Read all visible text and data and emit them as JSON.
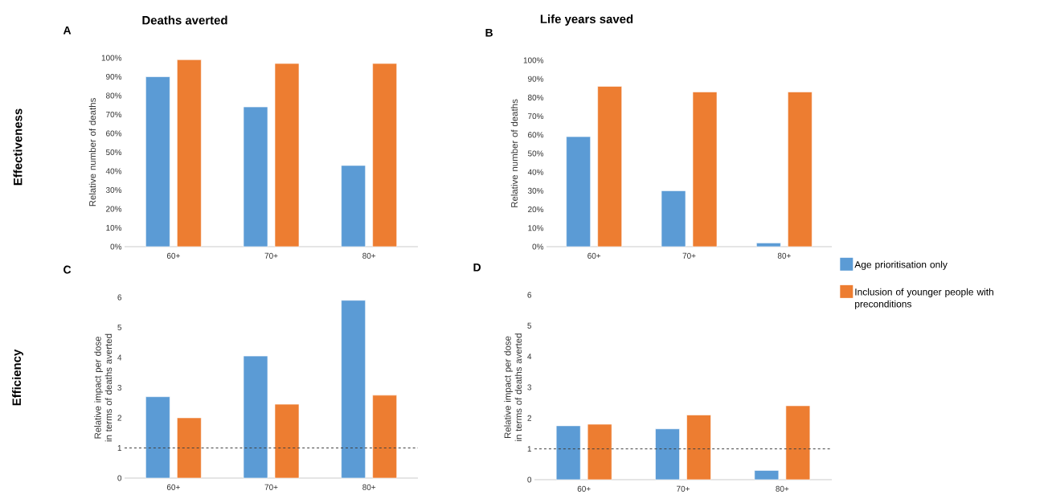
{
  "chart_data": [
    {
      "type": "bar",
      "title": "A",
      "annotations": [
        "Deaths averted",
        "Effectiveness"
      ],
      "ylabel": "Relative number of deaths",
      "categories": [
        "60+",
        "70+",
        "80+"
      ],
      "series": [
        {
          "color": "#5b9bd5",
          "values": [
            90,
            74,
            43
          ]
        },
        {
          "color": "#ed7d31",
          "values": [
            99,
            97,
            97
          ]
        }
      ],
      "ylim": [
        0,
        100
      ],
      "yticks": [
        {
          "value": 0,
          "label": "0%"
        },
        {
          "value": 10,
          "label": "10%"
        },
        {
          "value": 20,
          "label": "20%"
        },
        {
          "value": 30,
          "label": "30%"
        },
        {
          "value": 40,
          "label": "40%"
        },
        {
          "value": 50,
          "label": "50%"
        },
        {
          "value": 60,
          "label": "60%"
        },
        {
          "value": 70,
          "label": "70%"
        },
        {
          "value": 80,
          "label": "80%"
        },
        {
          "value": 90,
          "label": "90%"
        },
        {
          "value": 100,
          "label": "100%"
        }
      ]
    },
    {
      "type": "bar",
      "title": "B",
      "annotations": [
        "Life years saved"
      ],
      "ylabel": "Relative number of deaths",
      "categories": [
        "60+",
        "70+",
        "80+"
      ],
      "series": [
        {
          "name": "Age prioritisation only",
          "color": "#5b9bd5",
          "values": [
            59,
            30,
            2
          ]
        },
        {
          "name": "Inclusion of younger people with preconditions",
          "color": "#ed7d31",
          "values": [
            86,
            83,
            83
          ]
        }
      ],
      "legend": "right",
      "ylim": [
        0,
        100
      ],
      "yticks": [
        {
          "value": 0,
          "label": "0%"
        },
        {
          "value": 10,
          "label": "10%"
        },
        {
          "value": 20,
          "label": "20%"
        },
        {
          "value": 30,
          "label": "30%"
        },
        {
          "value": 40,
          "label": "40%"
        },
        {
          "value": 50,
          "label": "50%"
        },
        {
          "value": 60,
          "label": "60%"
        },
        {
          "value": 70,
          "label": "70%"
        },
        {
          "value": 80,
          "label": "80%"
        },
        {
          "value": 90,
          "label": "90%"
        },
        {
          "value": 100,
          "label": "100%"
        }
      ]
    },
    {
      "type": "bar",
      "title": "C",
      "annotations": [
        "Efficiency"
      ],
      "ylabel": "Relative impact per dose in terms of deaths averted",
      "categories": [
        "60+",
        "70+",
        "80+"
      ],
      "series": [
        {
          "color": "#5b9bd5",
          "values": [
            2.7,
            4.05,
            5.9
          ]
        },
        {
          "color": "#ed7d31",
          "values": [
            2.0,
            2.45,
            2.75
          ]
        }
      ],
      "ylim": [
        0,
        6
      ],
      "yticks": [
        0,
        1,
        2,
        3,
        4,
        5,
        6
      ],
      "ref_lines": [
        {
          "axis": "y",
          "value": 1,
          "color": "#404040",
          "line_style": "dashed"
        }
      ]
    },
    {
      "type": "bar",
      "title": "D",
      "ylabel": "Relative impact per dose in terms of deaths averted",
      "categories": [
        "60+",
        "70+",
        "80+"
      ],
      "series": [
        {
          "color": "#5b9bd5",
          "values": [
            1.75,
            1.65,
            0.3
          ]
        },
        {
          "color": "#ed7d31",
          "values": [
            1.8,
            2.1,
            2.4
          ]
        }
      ],
      "ylim": [
        0,
        6
      ],
      "yticks": [
        0,
        1,
        2,
        3,
        4,
        5,
        6
      ],
      "ref_lines": [
        {
          "axis": "y",
          "value": 1,
          "color": "#404040",
          "line_style": "dashed"
        }
      ]
    }
  ]
}
